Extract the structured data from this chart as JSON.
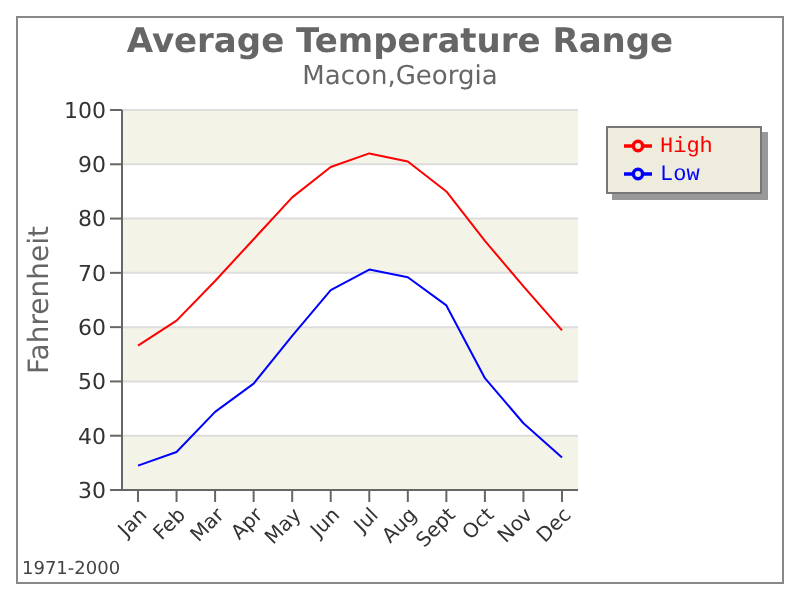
{
  "chart_data": {
    "type": "line",
    "title": "Average Temperature Range",
    "subtitle": "Macon,Georgia",
    "ylabel": "Fahrenheit",
    "categories": [
      "Jan",
      "Feb",
      "Mar",
      "Apr",
      "May",
      "Jun",
      "Jul",
      "Aug",
      "Sept",
      "Oct",
      "Nov",
      "Dec"
    ],
    "series": [
      {
        "name": "High",
        "color": "#ff0000",
        "values": [
          56.6,
          61.2,
          68.5,
          76.2,
          83.9,
          89.5,
          92,
          90.5,
          85,
          75.9,
          67.5,
          59.4
        ]
      },
      {
        "name": "Low",
        "color": "#0000ff",
        "values": [
          34.5,
          37,
          44.4,
          49.6,
          58.4,
          66.8,
          70.6,
          69.2,
          64,
          50.6,
          42.3,
          36
        ]
      }
    ],
    "ylim": [
      30,
      100
    ],
    "yticks": [
      30,
      40,
      50,
      60,
      70,
      80,
      90,
      100
    ],
    "grid": "y",
    "legend": "top right",
    "marker": "none",
    "line_style": "solid",
    "annotations": [
      "1971-2000"
    ]
  }
}
